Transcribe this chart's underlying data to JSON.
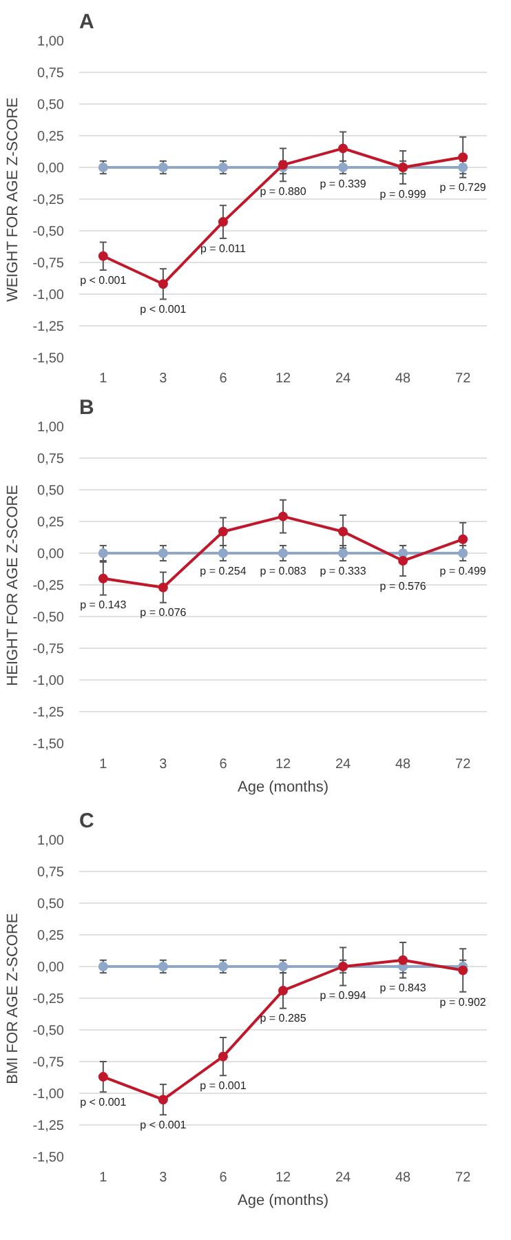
{
  "chart_data": [
    {
      "type": "line",
      "title": "A",
      "ylabel": "WEIGHT FOR AGE Z-SCORE",
      "categories": [
        "1",
        "3",
        "6",
        "12",
        "24",
        "48",
        "72"
      ],
      "series": [
        {
          "color": "#8fa7c9",
          "values": [
            0,
            0,
            0,
            0,
            0,
            0,
            0
          ],
          "errors": [
            0.05,
            0.05,
            0.05,
            0.05,
            0.05,
            0.05,
            0.05
          ]
        },
        {
          "color": "#c0182a",
          "values": [
            -0.7,
            -0.92,
            -0.43,
            0.02,
            0.15,
            0.0,
            0.08
          ],
          "errors": [
            0.11,
            0.12,
            0.13,
            0.13,
            0.13,
            0.13,
            0.16
          ]
        }
      ],
      "ylim": [
        -1.5,
        1.0
      ],
      "yticks": [
        {
          "value": -1.5,
          "label": "-1,50"
        },
        {
          "value": -1.25,
          "label": "-1,25"
        },
        {
          "value": -1.0,
          "label": "-1,00"
        },
        {
          "value": -0.75,
          "label": "-0,75"
        },
        {
          "value": -0.5,
          "label": "-0,50"
        },
        {
          "value": -0.25,
          "label": "-0,25"
        },
        {
          "value": 0,
          "label": "0,00"
        },
        {
          "value": 0.25,
          "label": "0,25"
        },
        {
          "value": 0.5,
          "label": "0,50"
        },
        {
          "value": 0.75,
          "label": "0,75"
        },
        {
          "value": 1.0,
          "label": "1,00"
        }
      ],
      "grid": "y",
      "marker": "circle",
      "line_style": "solid",
      "annotations": [
        "p < 0.001",
        "p < 0.001",
        "p = 0.011",
        "p = 0.880",
        "p = 0.339",
        "p = 0.999",
        "p = 0.729"
      ]
    },
    {
      "type": "line",
      "title": "B",
      "ylabel": "HEIGHT FOR AGE Z-SCORE",
      "xlabel": "Age (months)",
      "categories": [
        "1",
        "3",
        "6",
        "12",
        "24",
        "48",
        "72"
      ],
      "series": [
        {
          "color": "#8fa7c9",
          "values": [
            0,
            0,
            0,
            0,
            0,
            0,
            0
          ],
          "errors": [
            0.06,
            0.06,
            0.06,
            0.06,
            0.06,
            0.06,
            0.06
          ]
        },
        {
          "color": "#c0182a",
          "values": [
            -0.2,
            -0.27,
            0.17,
            0.29,
            0.17,
            -0.06,
            0.11
          ],
          "errors": [
            0.13,
            0.12,
            0.11,
            0.13,
            0.13,
            0.12,
            0.13
          ]
        }
      ],
      "ylim": [
        -1.5,
        1.0
      ],
      "yticks": [
        {
          "value": -1.5,
          "label": "-1,50"
        },
        {
          "value": -1.25,
          "label": "-1,25"
        },
        {
          "value": -1.0,
          "label": "-1,00"
        },
        {
          "value": -0.75,
          "label": "-0,75"
        },
        {
          "value": -0.5,
          "label": "-0,50"
        },
        {
          "value": -0.25,
          "label": "-0,25"
        },
        {
          "value": 0,
          "label": "0,00"
        },
        {
          "value": 0.25,
          "label": "0,25"
        },
        {
          "value": 0.5,
          "label": "0,50"
        },
        {
          "value": 0.75,
          "label": "0,75"
        },
        {
          "value": 1.0,
          "label": "1,00"
        }
      ],
      "grid": "y",
      "marker": "circle",
      "line_style": "solid",
      "annotations": [
        "p = 0.143",
        "p = 0.076",
        "p = 0.254",
        "p = 0.083",
        "p = 0.333",
        "p = 0.576",
        "p = 0.499"
      ]
    },
    {
      "type": "line",
      "title": "C",
      "ylabel": "BMI FOR AGE Z-SCORE",
      "xlabel": "Age (months)",
      "categories": [
        "1",
        "3",
        "6",
        "12",
        "24",
        "48",
        "72"
      ],
      "series": [
        {
          "color": "#8fa7c9",
          "values": [
            0,
            0,
            0,
            0,
            0,
            0,
            0
          ],
          "errors": [
            0.05,
            0.05,
            0.05,
            0.05,
            0.05,
            0.05,
            0.05
          ]
        },
        {
          "color": "#c0182a",
          "values": [
            -0.87,
            -1.05,
            -0.71,
            -0.19,
            0.0,
            0.05,
            -0.03
          ],
          "errors": [
            0.12,
            0.12,
            0.15,
            0.14,
            0.15,
            0.14,
            0.17
          ]
        }
      ],
      "ylim": [
        -1.5,
        1.0
      ],
      "yticks": [
        {
          "value": -1.5,
          "label": "-1,50"
        },
        {
          "value": -1.25,
          "label": "-1,25"
        },
        {
          "value": -1.0,
          "label": "-1,00"
        },
        {
          "value": -0.75,
          "label": "-0,75"
        },
        {
          "value": -0.5,
          "label": "-0,50"
        },
        {
          "value": -0.25,
          "label": "-0,25"
        },
        {
          "value": 0,
          "label": "0,00"
        },
        {
          "value": 0.25,
          "label": "0,25"
        },
        {
          "value": 0.5,
          "label": "0,50"
        },
        {
          "value": 0.75,
          "label": "0,75"
        },
        {
          "value": 1.0,
          "label": "1,00"
        }
      ],
      "grid": "y",
      "marker": "circle",
      "line_style": "solid",
      "annotations": [
        "p < 0.001",
        "p < 0.001",
        "p = 0.001",
        "p = 0.285",
        "p = 0.994",
        "p = 0.843",
        "p = 0.902"
      ]
    }
  ]
}
